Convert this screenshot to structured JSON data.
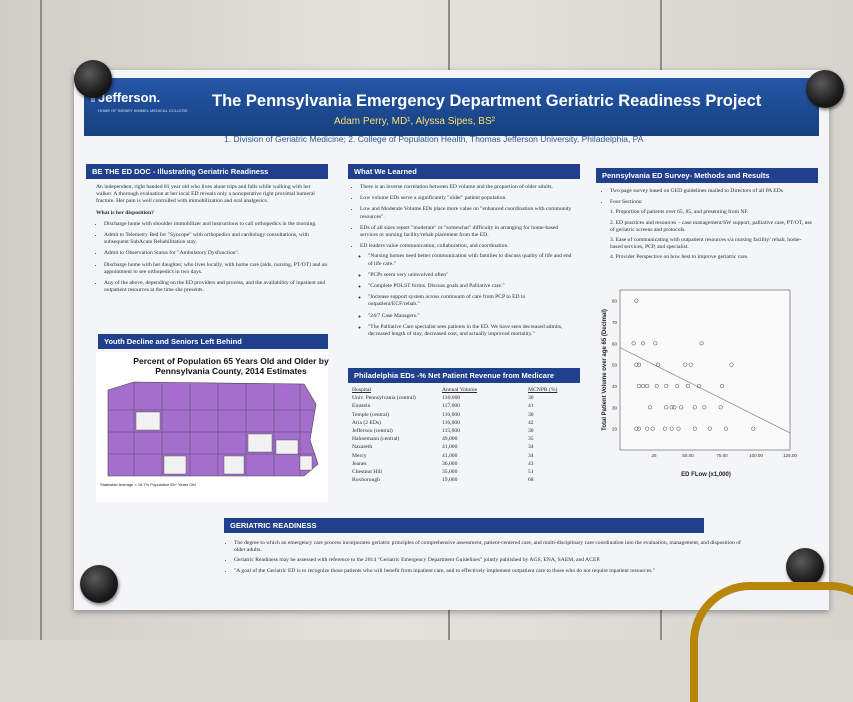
{
  "header": {
    "logo": "Jefferson.",
    "logo_sub": "HOME OF SIDNEY KIMMEL MEDICAL COLLEGE",
    "title": "The Pennsylvania Emergency Department Geriatric Readiness Project",
    "authors": "Adam Perry, MD¹, Alyssa Sipes, BS²",
    "affiliations": "1. Division of Geriatric Medicine; 2. College of Population Health, Thomas Jefferson University, Philadelphia, PA"
  },
  "col1": {
    "heading": "BE THE ED DOC - Illustrating Geriatric Readiness",
    "intro": "An independent, right handed 81 year old who lives alone trips and falls while walking with her walker. A thorough evaluation at her local ED reveals only a nonoperative right proximal humeral fracture. Her pain is well controlled with immobilization and oral analgesics.",
    "question": "What is her disposition?",
    "options": [
      "Discharge home with shoulder immobilizer and instructions to call orthopedics in the morning.",
      "Admit to Telemetry Bed for \"Syncope\" with orthopedics and cardiology consultations, with subsequent SubAcute Rehabilitation stay.",
      "Admit to Observation Status for \"Ambulatory Dysfunction\".",
      "Discharge home with her daughter, who lives locally, with home care (aids, nursing, PT/OT) and an appointment to see orthopedics in two days.",
      "Any of the above, depending on the ED providers and process, and the availability of inpatient and outpatient resources at the time she presents."
    ],
    "heading2": "Youth Decline and Seniors Left Behind",
    "map_title": "Percent of Population 65 Years Old and Older by Pennsylvania County, 2014 Estimates",
    "map_legend": "Statewide Average = 16.7% Population 65+ Years Old"
  },
  "col2": {
    "heading": "What We Learned",
    "points": [
      "There is an inverse correlation between ED volume and the proportion of older adults.",
      "Low volume EDs serve a significantly \"older\" patient population.",
      "Low and Moderate Volume EDs place more value on \"enhanced coordination with community resources\".",
      "EDs of all sizes report \"moderate\" or \"somewhat\" difficulty in arranging for home-based services or nursing facility/rehab placement from the ED.",
      "ED leaders value communication, collaboration, and coordination."
    ],
    "quotes": [
      "\"Nursing homes need better communication with families to discuss quality of life and end of life care.\"",
      "\"PCPs seem very uninvolved often\"",
      "\"Complete POLST forms. Discuss goals and Palliative care.\"",
      "\"Increase support system across continuum of care from PCP to ED to outpatient/ECF/rehab.\"",
      "\"24/7 Case Managers.\"",
      "\"The Palliative Care specialist sees patients in the ED. We have seen decreased admits, decreased length of stay, decreased cost, and actually improved mortality.\""
    ],
    "heading2": "Philadelphia EDs -% Net Patient Revenue from Medicare",
    "table_headers": [
      "Hospital",
      "Annual Volume",
      "MCNPR (%)"
    ],
    "table_rows": [
      [
        "Univ. Pennsylvania (central)",
        "130,000",
        "30"
      ],
      [
        "Einstein",
        "117,000",
        "41"
      ],
      [
        "Temple (central)",
        "116,000",
        "30"
      ],
      [
        "Aria (2 EDs)",
        "116,000",
        "42"
      ],
      [
        "Jefferson (central)",
        "115,000",
        "30"
      ],
      [
        "Hahnemann (central)",
        "49,000",
        "35"
      ],
      [
        "Nazareth",
        "41,000",
        "34"
      ],
      [
        "Mercy",
        "41,000",
        "34"
      ],
      [
        "Jeanes",
        "36,000",
        "43"
      ],
      [
        "Chestnut Hill",
        "35,000",
        "51"
      ],
      [
        "Roxborough",
        "19,000",
        "68"
      ]
    ]
  },
  "col3": {
    "heading": "Pennsylvania ED Survey- Methods and Results",
    "points": [
      "Two page survey based on GED guidelines mailed to Directors of all PA EDs",
      "Four Sections:"
    ],
    "sections": [
      "1. Proportion of patients over 65, 85, and presenting from NF.",
      "2. ED practices and resources – case management/SW support, palliative care, PT/OT, use of geriatric screens and protocols.",
      "3. Ease of communicating with outpatient resources s/a nursing facility/ rehab, home-based services, PCP, and specialist.",
      "4. Provider Perspective on how best to improve geriatric care."
    ]
  },
  "chart_data": {
    "type": "scatter",
    "xlabel": "ED FLow (x1,000)",
    "ylabel": "Total Patient Volume over age 65 (Decimal)",
    "xlim": [
      0,
      125
    ],
    "ylim": [
      10,
      85
    ],
    "x_ticks": [
      "25",
      "50.00",
      "75.00",
      "100.00",
      "125.00"
    ],
    "y_ticks": [
      "20",
      "30",
      "40",
      "50",
      "60",
      "70",
      "80"
    ],
    "points": [
      {
        "x": 12,
        "y": 80
      },
      {
        "x": 10,
        "y": 60
      },
      {
        "x": 17,
        "y": 60
      },
      {
        "x": 26,
        "y": 60
      },
      {
        "x": 12,
        "y": 50
      },
      {
        "x": 14,
        "y": 50
      },
      {
        "x": 28,
        "y": 50
      },
      {
        "x": 48,
        "y": 50
      },
      {
        "x": 52,
        "y": 50
      },
      {
        "x": 82,
        "y": 50
      },
      {
        "x": 14,
        "y": 40
      },
      {
        "x": 17,
        "y": 40
      },
      {
        "x": 20,
        "y": 40
      },
      {
        "x": 27,
        "y": 40
      },
      {
        "x": 34,
        "y": 40
      },
      {
        "x": 42,
        "y": 40
      },
      {
        "x": 50,
        "y": 40
      },
      {
        "x": 58,
        "y": 40
      },
      {
        "x": 75,
        "y": 40
      },
      {
        "x": 22,
        "y": 30
      },
      {
        "x": 34,
        "y": 30
      },
      {
        "x": 38,
        "y": 30
      },
      {
        "x": 40,
        "y": 30
      },
      {
        "x": 45,
        "y": 30
      },
      {
        "x": 55,
        "y": 30
      },
      {
        "x": 62,
        "y": 30
      },
      {
        "x": 74,
        "y": 30
      },
      {
        "x": 12,
        "y": 20
      },
      {
        "x": 14,
        "y": 20
      },
      {
        "x": 20,
        "y": 20
      },
      {
        "x": 24,
        "y": 20
      },
      {
        "x": 33,
        "y": 20
      },
      {
        "x": 38,
        "y": 20
      },
      {
        "x": 43,
        "y": 20
      },
      {
        "x": 55,
        "y": 20
      },
      {
        "x": 66,
        "y": 20
      },
      {
        "x": 78,
        "y": 20
      },
      {
        "x": 98,
        "y": 20
      },
      {
        "x": 60,
        "y": 60
      }
    ],
    "trendline": {
      "x1": 0,
      "y1": 58,
      "x2": 125,
      "y2": 18
    }
  },
  "bottom": {
    "heading": "GERIATRIC READINESS",
    "points": [
      "The degree to which an emergency care process incorporates geriatric principles of comprehensive assessment, patient-centered care, and multi-disciplinary care coordination into the evaluation, management, and disposition of older adults.",
      "Geriatric Readiness may be assessed with reference to the 2014 \"Geriatric Emergency Department Guidelines\" jointly published by AGS, ENA, SAEM, and ACEP.",
      "\"A goal of the Geriatric ED is to recognize those patients who will benefit from inpatient care, and to effectively implement outpatient care to those who do not require inpatient resources.\""
    ]
  },
  "colors": {
    "header_blue": "#1f4e9c",
    "bar_blue": "#203f8c",
    "author_gold": "#ffde6a",
    "map_purple": "#9b5fc0"
  }
}
